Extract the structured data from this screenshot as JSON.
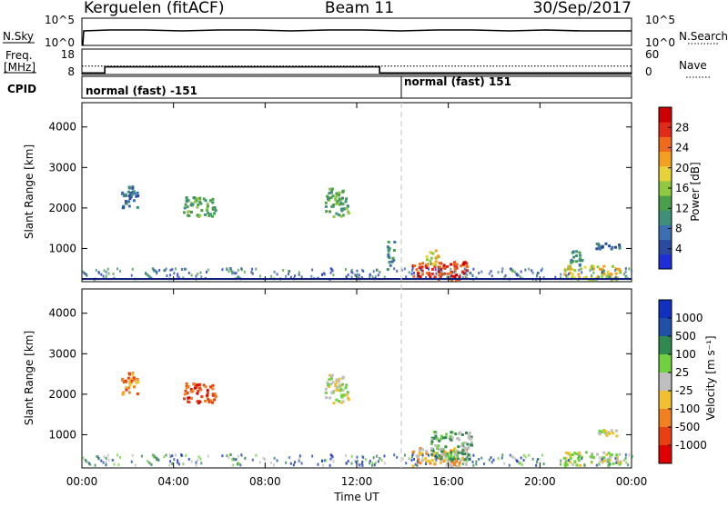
{
  "header": {
    "station": "Kerguelen (fitACF)",
    "beam": "Beam 11",
    "date": "30/Sep/2017"
  },
  "top_panels": {
    "nsky_label": "N.Sky",
    "nsky_ticks": [
      "10^5",
      "10^0"
    ],
    "nsearch_label": "N.Search",
    "nsearch_ticks": [
      "10^5",
      "10^0"
    ],
    "freq_label_1": "Freq.",
    "freq_label_2": "[MHz]",
    "freq_ticks": [
      "18",
      "8"
    ],
    "nave_label": "Nave",
    "nave_ticks": [
      "60",
      "0"
    ],
    "cpid_label": "CPID",
    "cpid_segments": [
      {
        "label": "normal (fast) -151",
        "start_hour": 0
      },
      {
        "label": "normal (fast) 151",
        "start_hour": 14
      }
    ],
    "freq_steps": [
      {
        "from_hour": 0,
        "to_hour": 1,
        "mhz": 8.6
      },
      {
        "from_hour": 1,
        "to_hour": 13,
        "mhz": 11.0
      },
      {
        "from_hour": 13,
        "to_hour": 24,
        "mhz": 8.6
      }
    ],
    "nave_level": 20
  },
  "chart_data": [
    {
      "type": "heatmap",
      "name": "Power",
      "ylabel": "Slant Range [km]",
      "xlabel": "",
      "ylim": [
        180,
        4600
      ],
      "yticks": [
        1000,
        2000,
        3000,
        4000
      ],
      "xlim_hours": [
        0,
        24
      ],
      "colorbar_label": "Power [dB]",
      "colorbar_ticks": [
        "4",
        "8",
        "12",
        "16",
        "20",
        "24",
        "28"
      ],
      "colorbar_colors": [
        "#1f2fd8",
        "#2a4aa0",
        "#3b6fb2",
        "#3f8f7a",
        "#4aa04a",
        "#8fc93f",
        "#e8d23a",
        "#f2a020",
        "#ef6a1a",
        "#e22a1a",
        "#cc0000"
      ],
      "echo_regions": [
        {
          "t0": 1.7,
          "t1": 2.4,
          "r0": 2000,
          "r1": 2600,
          "level": 2
        },
        {
          "t0": 4.4,
          "t1": 5.8,
          "r0": 1800,
          "r1": 2300,
          "level": 4
        },
        {
          "t0": 10.6,
          "t1": 11.6,
          "r0": 1800,
          "r1": 2500,
          "level": 4
        },
        {
          "t0": 13.3,
          "t1": 13.6,
          "r0": 500,
          "r1": 1200,
          "level": 3
        },
        {
          "t0": 14.4,
          "t1": 16.8,
          "r0": 250,
          "r1": 700,
          "level": 9
        },
        {
          "t0": 15.0,
          "t1": 15.6,
          "r0": 600,
          "r1": 1000,
          "level": 6
        },
        {
          "t0": 21.0,
          "t1": 23.5,
          "r0": 250,
          "r1": 600,
          "level": 6
        },
        {
          "t0": 21.3,
          "t1": 21.8,
          "r0": 600,
          "r1": 1000,
          "level": 3
        },
        {
          "t0": 22.4,
          "t1": 23.5,
          "r0": 1000,
          "r1": 1150,
          "level": 2
        }
      ]
    },
    {
      "type": "heatmap",
      "name": "Velocity",
      "ylabel": "Slant Range [km]",
      "xlabel": "Time UT",
      "ylim": [
        180,
        4600
      ],
      "yticks": [
        1000,
        2000,
        3000,
        4000
      ],
      "xlim_hours": [
        0,
        24
      ],
      "xticks": [
        "00:00",
        "04:00",
        "08:00",
        "12:00",
        "16:00",
        "20:00",
        "00:00"
      ],
      "colorbar_label": "Velocity [m s⁻¹]",
      "colorbar_ticks": [
        "1000",
        "500",
        "100",
        "25",
        "-25",
        "-100",
        "-500",
        "-1000"
      ],
      "colorbar_colors": [
        "#1030c0",
        "#2050a8",
        "#308a50",
        "#6fd040",
        "#bfbfbf",
        "#f0c030",
        "#f08020",
        "#e84010",
        "#e00000"
      ],
      "echo_regions": [
        {
          "t0": 1.7,
          "t1": 2.4,
          "r0": 2000,
          "r1": 2600,
          "level": 6
        },
        {
          "t0": 4.4,
          "t1": 5.8,
          "r0": 1800,
          "r1": 2300,
          "level": 7
        },
        {
          "t0": 10.6,
          "t1": 11.6,
          "r0": 1800,
          "r1": 2500,
          "level": 4
        },
        {
          "t0": 14.4,
          "t1": 16.8,
          "r0": 250,
          "r1": 700,
          "level": 5
        },
        {
          "t0": 15.2,
          "t1": 17.0,
          "r0": 400,
          "r1": 1100,
          "level": 3
        },
        {
          "t0": 21.0,
          "t1": 23.5,
          "r0": 250,
          "r1": 600,
          "level": 4
        },
        {
          "t0": 22.4,
          "t1": 23.5,
          "r0": 1000,
          "r1": 1150,
          "level": 4
        }
      ]
    }
  ]
}
